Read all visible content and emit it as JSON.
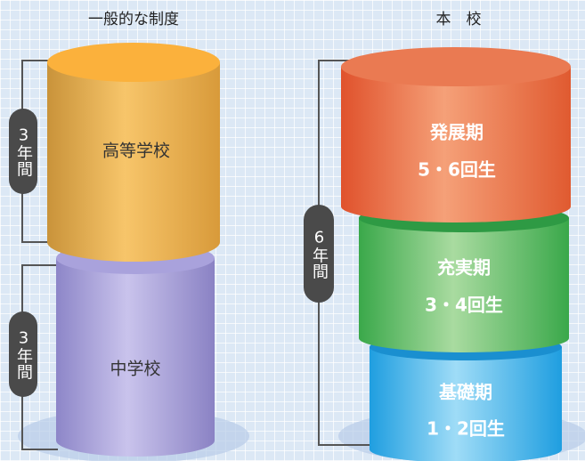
{
  "left_title": "一般的な制度",
  "right_title": "本　校",
  "left": {
    "upper": "高等学校",
    "lower": "中学校",
    "duration_upper": "3年間",
    "duration_lower": "3年間"
  },
  "right": {
    "duration": "6年間",
    "stages": [
      {
        "name": "発展期",
        "grades": "5・6回生"
      },
      {
        "name": "充実期",
        "grades": "3・4回生"
      },
      {
        "name": "基礎期",
        "grades": "1・2回生"
      }
    ]
  }
}
